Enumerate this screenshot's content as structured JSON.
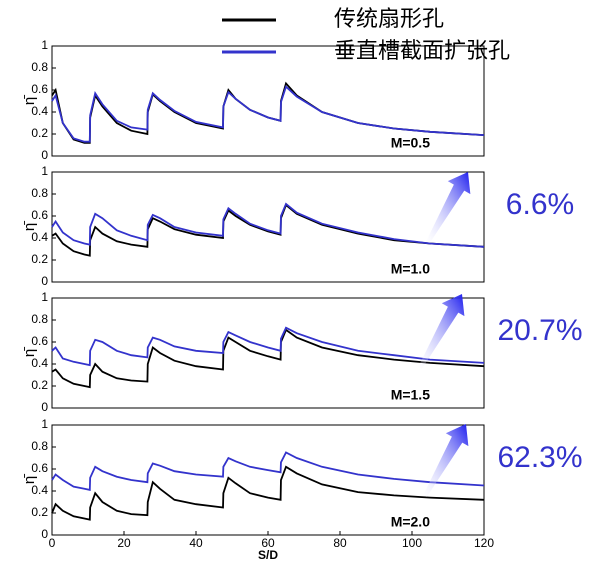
{
  "chart_data": [
    {
      "type": "line",
      "title": "M=0.5",
      "y_label": "η̄",
      "x": [
        0,
        1,
        3,
        6,
        9,
        10.5,
        10.6,
        12,
        14,
        18,
        22,
        26.5,
        26.6,
        28,
        30,
        34,
        40,
        47.5,
        47.6,
        49,
        51,
        55,
        60,
        63.5,
        63.6,
        65,
        68,
        75,
        85,
        95,
        105,
        120
      ],
      "series": [
        {
          "name": "传统扇形孔",
          "color": "#000000",
          "values": [
            0.55,
            0.6,
            0.3,
            0.15,
            0.12,
            0.12,
            0.35,
            0.55,
            0.45,
            0.3,
            0.23,
            0.2,
            0.4,
            0.56,
            0.5,
            0.4,
            0.3,
            0.25,
            0.45,
            0.6,
            0.52,
            0.42,
            0.35,
            0.32,
            0.5,
            0.66,
            0.55,
            0.4,
            0.3,
            0.25,
            0.22,
            0.19
          ]
        },
        {
          "name": "垂直槽截面扩张孔",
          "color": "#3333cc",
          "values": [
            0.5,
            0.55,
            0.3,
            0.16,
            0.13,
            0.13,
            0.37,
            0.57,
            0.47,
            0.32,
            0.26,
            0.24,
            0.42,
            0.57,
            0.51,
            0.41,
            0.31,
            0.26,
            0.45,
            0.58,
            0.52,
            0.42,
            0.35,
            0.32,
            0.49,
            0.63,
            0.54,
            0.4,
            0.3,
            0.25,
            0.22,
            0.19
          ]
        }
      ],
      "xlim": [
        0,
        120
      ],
      "ylim": [
        0,
        1
      ],
      "yticks": [
        0,
        0.2,
        0.4,
        0.6,
        0.8,
        1
      ]
    },
    {
      "type": "line",
      "title": "M=1.0",
      "y_label": "η̄",
      "annotation": "6.6%",
      "x": [
        0,
        1,
        3,
        6,
        9,
        10.5,
        10.6,
        12,
        14,
        18,
        22,
        26.5,
        26.6,
        28,
        30,
        34,
        40,
        47.5,
        47.6,
        49,
        51,
        55,
        60,
        63.5,
        63.6,
        65,
        68,
        75,
        85,
        95,
        105,
        120
      ],
      "series": [
        {
          "color": "#000000",
          "values": [
            0.42,
            0.44,
            0.35,
            0.28,
            0.25,
            0.24,
            0.38,
            0.5,
            0.44,
            0.37,
            0.34,
            0.32,
            0.48,
            0.58,
            0.55,
            0.48,
            0.43,
            0.4,
            0.55,
            0.65,
            0.6,
            0.52,
            0.46,
            0.43,
            0.58,
            0.7,
            0.62,
            0.52,
            0.44,
            0.38,
            0.35,
            0.32
          ]
        },
        {
          "color": "#3333cc",
          "values": [
            0.5,
            0.55,
            0.45,
            0.38,
            0.35,
            0.34,
            0.5,
            0.62,
            0.58,
            0.47,
            0.42,
            0.38,
            0.52,
            0.61,
            0.58,
            0.5,
            0.45,
            0.42,
            0.57,
            0.67,
            0.62,
            0.53,
            0.47,
            0.44,
            0.6,
            0.71,
            0.63,
            0.53,
            0.45,
            0.39,
            0.35,
            0.32
          ]
        }
      ],
      "xlim": [
        0,
        120
      ],
      "ylim": [
        0,
        1
      ],
      "yticks": [
        0,
        0.2,
        0.4,
        0.6,
        0.8,
        1
      ]
    },
    {
      "type": "line",
      "title": "M=1.5",
      "y_label": "η̄",
      "annotation": "20.7%",
      "x": [
        0,
        1,
        3,
        6,
        9,
        10.5,
        10.6,
        12,
        14,
        18,
        22,
        26.5,
        26.6,
        28,
        30,
        34,
        40,
        47.5,
        47.6,
        49,
        51,
        55,
        60,
        63.5,
        63.6,
        65,
        68,
        75,
        85,
        95,
        105,
        120
      ],
      "series": [
        {
          "color": "#000000",
          "values": [
            0.33,
            0.35,
            0.27,
            0.22,
            0.2,
            0.19,
            0.3,
            0.4,
            0.33,
            0.27,
            0.25,
            0.24,
            0.4,
            0.55,
            0.5,
            0.43,
            0.38,
            0.35,
            0.52,
            0.64,
            0.6,
            0.52,
            0.47,
            0.44,
            0.6,
            0.71,
            0.64,
            0.55,
            0.48,
            0.44,
            0.41,
            0.38
          ]
        },
        {
          "color": "#3333cc",
          "values": [
            0.52,
            0.55,
            0.45,
            0.42,
            0.4,
            0.39,
            0.52,
            0.62,
            0.6,
            0.52,
            0.48,
            0.46,
            0.55,
            0.64,
            0.62,
            0.56,
            0.52,
            0.5,
            0.6,
            0.69,
            0.66,
            0.6,
            0.55,
            0.52,
            0.63,
            0.73,
            0.68,
            0.6,
            0.52,
            0.48,
            0.44,
            0.41
          ]
        }
      ],
      "xlim": [
        0,
        120
      ],
      "ylim": [
        0,
        1
      ],
      "yticks": [
        0,
        0.2,
        0.4,
        0.6,
        0.8,
        1
      ]
    },
    {
      "type": "line",
      "title": "M=2.0",
      "y_label": "η̄",
      "annotation": "62.3%",
      "x_label": "S/D",
      "x": [
        0,
        1,
        3,
        6,
        9,
        10.5,
        10.6,
        12,
        14,
        18,
        22,
        26.5,
        26.6,
        28,
        30,
        34,
        40,
        47.5,
        47.6,
        49,
        51,
        55,
        60,
        63.5,
        63.6,
        65,
        68,
        75,
        85,
        95,
        105,
        120
      ],
      "series": [
        {
          "color": "#000000",
          "values": [
            0.2,
            0.28,
            0.22,
            0.17,
            0.15,
            0.14,
            0.25,
            0.38,
            0.3,
            0.22,
            0.19,
            0.18,
            0.3,
            0.48,
            0.42,
            0.32,
            0.28,
            0.25,
            0.38,
            0.52,
            0.47,
            0.38,
            0.34,
            0.32,
            0.5,
            0.62,
            0.56,
            0.46,
            0.39,
            0.36,
            0.34,
            0.32
          ]
        },
        {
          "color": "#3333cc",
          "values": [
            0.5,
            0.55,
            0.5,
            0.44,
            0.42,
            0.41,
            0.52,
            0.62,
            0.58,
            0.53,
            0.5,
            0.48,
            0.56,
            0.65,
            0.63,
            0.58,
            0.55,
            0.53,
            0.62,
            0.7,
            0.67,
            0.62,
            0.59,
            0.57,
            0.66,
            0.75,
            0.7,
            0.62,
            0.55,
            0.51,
            0.48,
            0.45
          ]
        }
      ],
      "xlim": [
        0,
        120
      ],
      "ylim": [
        0,
        1
      ],
      "yticks": [
        0,
        0.2,
        0.4,
        0.6,
        0.8,
        1
      ],
      "xticks": [
        0,
        20,
        40,
        60,
        80,
        100,
        120
      ]
    }
  ]
}
